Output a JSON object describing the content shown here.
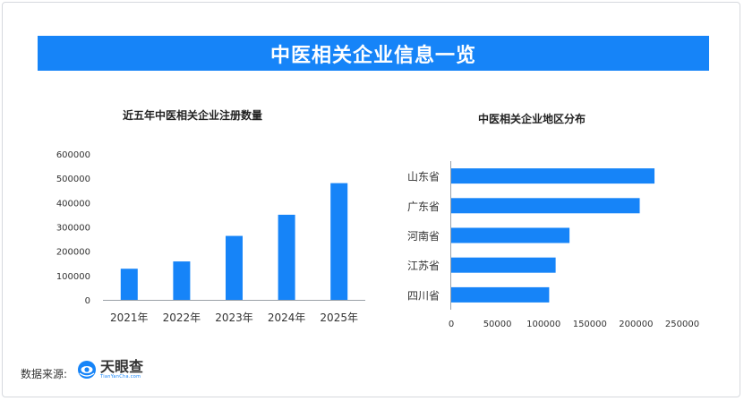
{
  "banner": {
    "title": "中医相关企业信息一览"
  },
  "source": {
    "label": "数据来源:",
    "logo_name": "天眼查",
    "logo_sub": "TianYanCha.com",
    "logo_icon": "tianyancha-logo-icon"
  },
  "colors": {
    "accent": "#1684f8",
    "axis": "#9aa0a6",
    "text": "#333333"
  },
  "chart_data": [
    {
      "type": "bar",
      "title": "近五年中医相关企业注册数量",
      "categories": [
        "2021年",
        "2022年",
        "2023年",
        "2024年",
        "2025年"
      ],
      "values": [
        128000,
        158000,
        263000,
        350000,
        480000
      ],
      "ylim": [
        0,
        600000
      ],
      "yticks": [
        0,
        100000,
        200000,
        300000,
        400000,
        500000,
        600000
      ],
      "grid": false,
      "legend": "none"
    },
    {
      "type": "bar",
      "orientation": "horizontal",
      "title": "中医相关企业地区分布",
      "categories": [
        "山东省",
        "广东省",
        "河南省",
        "江苏省",
        "四川省"
      ],
      "values": [
        220000,
        204000,
        128000,
        113000,
        106000
      ],
      "xlim": [
        0,
        250000
      ],
      "xticks": [
        0,
        50000,
        100000,
        150000,
        200000,
        250000
      ],
      "grid": false,
      "legend": "none"
    }
  ]
}
